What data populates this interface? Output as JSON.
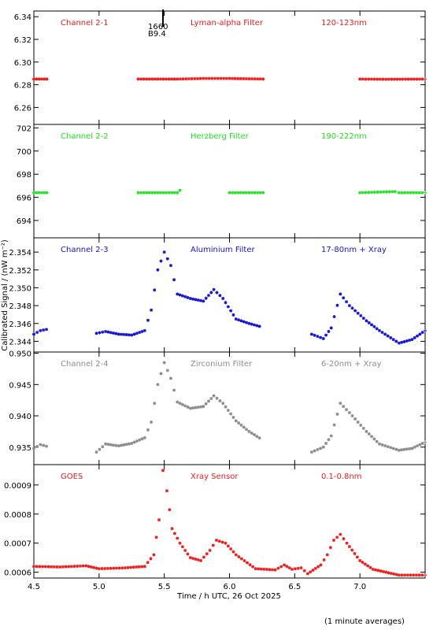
{
  "chart_data": {
    "type": "scatter",
    "xlabel": "Time / h UTC, 26 Oct 2025",
    "ylabel": "Calibrated Signal / (nW m⁻²)",
    "footnote": "(1 minute averages)",
    "marker": "*",
    "xlim": [
      4.5,
      7.5
    ],
    "xticks": [
      "4.5",
      "5.0",
      "5.5",
      "6.0",
      "6.5",
      "7.0"
    ],
    "xtick_values": [
      4.5,
      5.0,
      5.5,
      6.0,
      6.5,
      7.0
    ],
    "panels": [
      {
        "name": "Channel 2-1",
        "filter": "Lyman-alpha Filter",
        "band": "120-123nm",
        "color": "#ee1c1c",
        "ylim": [
          6.245,
          6.345
        ],
        "yticks": [
          "6.26",
          "6.28",
          "6.30",
          "6.32",
          "6.34"
        ],
        "ytick_values": [
          6.26,
          6.28,
          6.3,
          6.32,
          6.34
        ],
        "annotation": {
          "x": 5.49,
          "lines": [
            "1660",
            "B9.4"
          ]
        },
        "x": [
          4.5,
          4.62,
          4.98,
          5.3,
          5.6,
          5.8,
          6.0,
          6.28,
          6.63,
          7.0,
          7.2,
          7.5
        ],
        "y": [
          6.285,
          6.285,
          6.285,
          6.285,
          6.285,
          6.2855,
          6.2855,
          6.285,
          6.285,
          6.285,
          6.2848,
          6.285
        ]
      },
      {
        "name": "Channel 2-2",
        "filter": "Herzberg Filter",
        "band": "190-222nm",
        "color": "#22e122",
        "ylim": [
          692.5,
          702.3
        ],
        "yticks": [
          "694",
          "696",
          "698",
          "700",
          "702"
        ],
        "ytick_values": [
          694,
          696,
          698,
          700,
          702
        ],
        "x": [
          4.5,
          4.62,
          4.98,
          5.3,
          5.6,
          5.62,
          5.65,
          6.0,
          6.28,
          6.63,
          7.0,
          7.27,
          7.3,
          7.5
        ],
        "y": [
          696.4,
          696.4,
          696.4,
          696.4,
          696.4,
          696.6,
          696.4,
          696.4,
          696.4,
          696.4,
          696.4,
          696.5,
          696.4,
          696.4
        ]
      },
      {
        "name": "Channel 2-3",
        "filter": "Aluminium Filter",
        "band": "17-80nm + Xray",
        "color": "#1414d2",
        "ylim": [
          2.3428,
          2.3556
        ],
        "yticks": [
          "2.344",
          "2.346",
          "2.348",
          "2.350",
          "2.352",
          "2.354"
        ],
        "ytick_values": [
          2.344,
          2.346,
          2.348,
          2.35,
          2.352,
          2.354
        ],
        "x": [
          4.5,
          4.55,
          4.62,
          4.98,
          5.05,
          5.15,
          5.25,
          5.35,
          5.4,
          5.45,
          5.5,
          5.55,
          5.6,
          5.7,
          5.8,
          5.88,
          5.95,
          6.05,
          6.15,
          6.25,
          6.63,
          6.72,
          6.78,
          6.85,
          6.92,
          7.05,
          7.15,
          7.3,
          7.4,
          7.5
        ],
        "y": [
          2.3448,
          2.3452,
          2.3454,
          2.3449,
          2.3451,
          2.3448,
          2.3447,
          2.3452,
          2.3475,
          2.352,
          2.354,
          2.3525,
          2.3493,
          2.3488,
          2.3485,
          2.3498,
          2.3488,
          2.3465,
          2.346,
          2.3456,
          2.3448,
          2.3443,
          2.3455,
          2.3493,
          2.348,
          2.3463,
          2.3452,
          2.3438,
          2.3442,
          2.3452
        ]
      },
      {
        "name": "Channel 2-4",
        "filter": "Zirconium Filter",
        "band": "6-20nm + Xray",
        "color": "#8c8c8c",
        "ylim": [
          0.9322,
          0.9502
        ],
        "yticks": [
          "0.935",
          "0.940",
          "0.945",
          "0.950"
        ],
        "ytick_values": [
          0.935,
          0.94,
          0.945,
          0.95
        ],
        "x": [
          4.5,
          4.55,
          4.62,
          4.98,
          5.05,
          5.15,
          5.25,
          5.35,
          5.4,
          5.45,
          5.5,
          5.55,
          5.6,
          5.7,
          5.8,
          5.88,
          5.95,
          6.05,
          6.15,
          6.25,
          6.63,
          6.72,
          6.78,
          6.85,
          6.92,
          7.05,
          7.15,
          7.3,
          7.4,
          7.5
        ],
        "y": [
          0.9348,
          0.9354,
          0.935,
          0.9342,
          0.9355,
          0.9352,
          0.9356,
          0.9365,
          0.939,
          0.945,
          0.9485,
          0.946,
          0.9422,
          0.9412,
          0.9415,
          0.9432,
          0.942,
          0.9392,
          0.9375,
          0.9362,
          0.9342,
          0.935,
          0.9368,
          0.942,
          0.9405,
          0.9375,
          0.9355,
          0.9345,
          0.9348,
          0.9358
        ]
      },
      {
        "name": "GOES",
        "filter": "Xray Sensor",
        "band": "0.1-0.8nm",
        "color": "#ee1c1c",
        "ylim": [
          0.00058,
          0.00097
        ],
        "yticks": [
          "0.0006",
          "0.0007",
          "0.0008",
          "0.0009"
        ],
        "ytick_values": [
          0.0006,
          0.0007,
          0.0008,
          0.0009
        ],
        "x": [
          4.5,
          4.7,
          4.9,
          5.0,
          5.2,
          5.35,
          5.42,
          5.46,
          5.49,
          5.52,
          5.56,
          5.62,
          5.7,
          5.78,
          5.85,
          5.9,
          5.97,
          6.05,
          6.2,
          6.35,
          6.42,
          6.48,
          6.55,
          6.6,
          6.7,
          6.75,
          6.8,
          6.85,
          6.9,
          7.0,
          7.1,
          7.2,
          7.3,
          7.5
        ],
        "y": [
          0.00062,
          0.000618,
          0.000622,
          0.000612,
          0.000615,
          0.00062,
          0.00066,
          0.00078,
          0.00095,
          0.00088,
          0.00075,
          0.0007,
          0.00065,
          0.00064,
          0.000675,
          0.00071,
          0.0007,
          0.00066,
          0.000612,
          0.000608,
          0.000625,
          0.00061,
          0.000615,
          0.000595,
          0.000625,
          0.00066,
          0.00071,
          0.00073,
          0.0007,
          0.00064,
          0.00061,
          0.0006,
          0.00059,
          0.00059
        ]
      }
    ]
  }
}
